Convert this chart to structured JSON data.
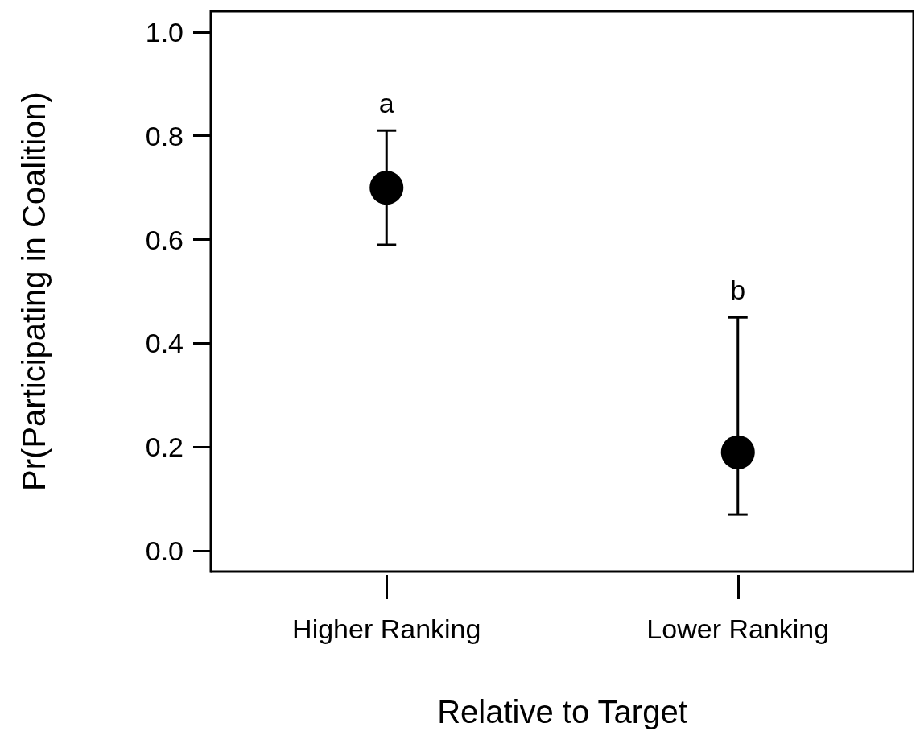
{
  "chart_data": {
    "type": "scatter",
    "xlabel": "Relative to Target",
    "ylabel": "Pr(Participating in Coalition)",
    "categories": [
      "Higher Ranking",
      "Lower Ranking"
    ],
    "values": [
      0.7,
      0.19
    ],
    "errors": [
      [
        0.59,
        0.81
      ],
      [
        0.07,
        0.45
      ]
    ],
    "color": "#000000",
    "marker": "circle",
    "ylim": [
      -0.04,
      1.04
    ],
    "yticks": [
      {
        "value": 0,
        "label": "0.0"
      },
      0.2,
      0.4,
      0.6,
      0.8,
      {
        "value": 1,
        "label": "1.0"
      }
    ],
    "grid": false,
    "annotations": [
      "a",
      "b"
    ]
  }
}
